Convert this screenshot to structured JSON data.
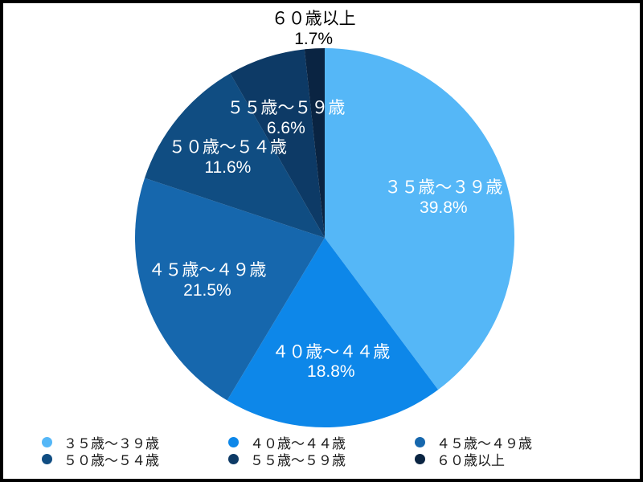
{
  "chart_data": {
    "type": "pie",
    "title": "",
    "start_angle": "12-oclock",
    "direction": "clockwise",
    "inside_label_color": "#ffffff",
    "outside_label_color": "#000000",
    "legend_position": "bottom",
    "legend_columns": 3,
    "slices": [
      {
        "label": "３５歳～３９歳",
        "value": 39.8,
        "percent_label": "39.8%",
        "color": "#55b7f7",
        "label_inside": true
      },
      {
        "label": "４０歳～４４歳",
        "value": 18.8,
        "percent_label": "18.8%",
        "color": "#0d87e9",
        "label_inside": true
      },
      {
        "label": "４５歳～４９歳",
        "value": 21.5,
        "percent_label": "21.5%",
        "color": "#1667ad",
        "label_inside": true
      },
      {
        "label": "５０歳～５４歳",
        "value": 11.6,
        "percent_label": "11.6%",
        "color": "#104d82",
        "label_inside": true
      },
      {
        "label": "５５歳～５９歳",
        "value": 6.6,
        "percent_label": "6.6%",
        "color": "#0d3a66",
        "label_inside": true
      },
      {
        "label": "６０歳以上",
        "value": 1.7,
        "percent_label": "1.7%",
        "color": "#0a2442",
        "label_inside": false
      }
    ]
  }
}
